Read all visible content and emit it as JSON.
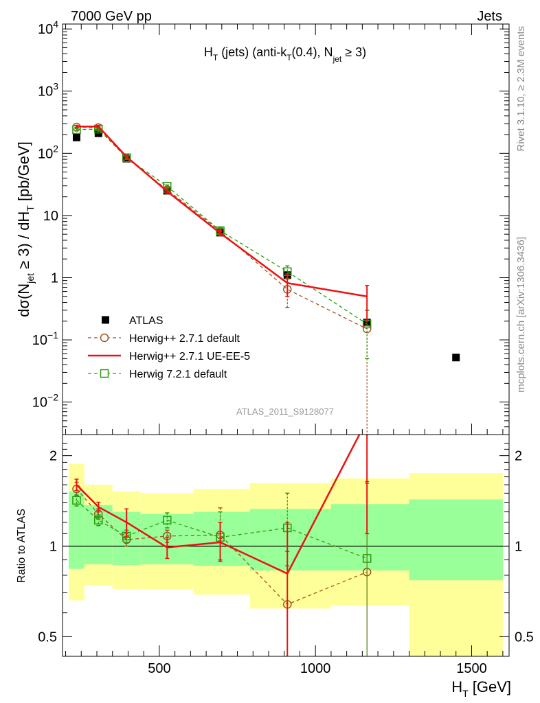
{
  "header": {
    "left": "7000 GeV pp",
    "right": "Jets"
  },
  "side": {
    "rivet": "Rivet 3.1.10, ≥ 2.3M events",
    "mcplots": "mcplots.cern.ch [arXiv:1306.3436]"
  },
  "watermark": "ATLAS_2011_S9128077",
  "colors": {
    "data": "#000000",
    "herwig_pp_default": "#a0521e",
    "herwig_pp_ueee5": "#ee1111",
    "herwig72": "#2a9a0a",
    "band_inner": "#99ff99",
    "band_outer": "#ffff99"
  },
  "chart_data": [
    {
      "type": "scatter",
      "panel": "main",
      "title": "H_T (jets) (anti-k_T(0.4), N_jet ≥ 3)",
      "xlabel": "",
      "ylabel": "dσ(N_jet ≥ 3) / dH_T [pb/GeV]",
      "yscale": "log",
      "xlim": [
        190,
        1620
      ],
      "ylim": [
        0.003,
        12000
      ],
      "y_ticks": [
        "10^-2",
        "10^-1",
        "1",
        "10",
        "10^2",
        "10^3",
        "10^4"
      ],
      "legend_position": "bottom-left",
      "series": [
        {
          "name": "ATLAS",
          "style": "marker-square",
          "points": [
            {
              "x": 235,
              "y": 180
            },
            {
              "x": 305,
              "y": 210
            },
            {
              "x": 395,
              "y": 82
            },
            {
              "x": 525,
              "y": 25
            },
            {
              "x": 695,
              "y": 5.3
            },
            {
              "x": 910,
              "y": 1.1
            },
            {
              "x": 1165,
              "y": 0.19
            },
            {
              "x": 1450,
              "y": 0.052
            }
          ]
        },
        {
          "name": "Herwig++ 2.7.1 default",
          "style": "dashed-circle",
          "points": [
            {
              "x": 235,
              "y": 265,
              "lo": 250,
              "hi": 280
            },
            {
              "x": 305,
              "y": 260,
              "lo": 248,
              "hi": 272
            },
            {
              "x": 395,
              "y": 84,
              "lo": 80,
              "hi": 88
            },
            {
              "x": 525,
              "y": 26,
              "lo": 24.5,
              "hi": 27.5
            },
            {
              "x": 695,
              "y": 5.6,
              "lo": 5.0,
              "hi": 6.3
            },
            {
              "x": 910,
              "y": 0.65,
              "lo": 0.33,
              "hi": 0.98
            },
            {
              "x": 1165,
              "y": 0.15,
              "lo": 0.001,
              "hi": 0.3
            }
          ]
        },
        {
          "name": "Herwig++ 2.7.1 UE-EE-5",
          "style": "solid-line",
          "points": [
            {
              "x": 235,
              "y": 270,
              "lo": 260,
              "hi": 282
            },
            {
              "x": 305,
              "y": 270,
              "lo": 260,
              "hi": 282
            },
            {
              "x": 395,
              "y": 88,
              "lo": 84,
              "hi": 92
            },
            {
              "x": 525,
              "y": 24.5,
              "lo": 23,
              "hi": 26
            },
            {
              "x": 695,
              "y": 5.2,
              "lo": 4.7,
              "hi": 5.8
            },
            {
              "x": 910,
              "y": 0.82,
              "lo": 0.5,
              "hi": 1.15
            },
            {
              "x": 1165,
              "y": 0.5,
              "lo": 0.2,
              "hi": 0.75
            }
          ]
        },
        {
          "name": "Herwig 7.2.1 default",
          "style": "dashed-square",
          "points": [
            {
              "x": 235,
              "y": 240,
              "lo": 228,
              "hi": 252
            },
            {
              "x": 305,
              "y": 245,
              "lo": 233,
              "hi": 257
            },
            {
              "x": 395,
              "y": 85,
              "lo": 81,
              "hi": 89
            },
            {
              "x": 525,
              "y": 29.5,
              "lo": 28,
              "hi": 31
            },
            {
              "x": 695,
              "y": 5.7,
              "lo": 5.1,
              "hi": 6.3
            },
            {
              "x": 910,
              "y": 1.25,
              "lo": 0.95,
              "hi": 1.55
            },
            {
              "x": 1165,
              "y": 0.18,
              "lo": 0.05,
              "hi": 0.3
            }
          ]
        }
      ]
    },
    {
      "type": "line",
      "panel": "ratio",
      "xlabel": "H_T [GeV]",
      "ylabel": "Ratio to ATLAS",
      "yscale": "log",
      "xlim": [
        190,
        1620
      ],
      "ylim": [
        0.43,
        2.35
      ],
      "x_ticks": [
        500,
        1000,
        1500
      ],
      "y_ticks": [
        0.5,
        1,
        2
      ],
      "uncertainty_bands": [
        {
          "x0": 210,
          "x1": 260,
          "outer": [
            0.66,
            1.88
          ],
          "inner": [
            0.84,
            1.52
          ]
        },
        {
          "x0": 260,
          "x1": 350,
          "outer": [
            0.74,
            1.6
          ],
          "inner": [
            0.87,
            1.37
          ]
        },
        {
          "x0": 350,
          "x1": 440,
          "outer": [
            0.72,
            1.52
          ],
          "inner": [
            0.865,
            1.3
          ]
        },
        {
          "x0": 440,
          "x1": 610,
          "outer": [
            0.72,
            1.5
          ],
          "inner": [
            0.87,
            1.28
          ]
        },
        {
          "x0": 610,
          "x1": 790,
          "outer": [
            0.69,
            1.55
          ],
          "inner": [
            0.86,
            1.3
          ]
        },
        {
          "x0": 790,
          "x1": 1050,
          "outer": [
            0.62,
            1.62
          ],
          "inner": [
            0.83,
            1.33
          ]
        },
        {
          "x0": 1050,
          "x1": 1300,
          "outer": [
            0.635,
            1.68
          ],
          "inner": [
            0.83,
            1.38
          ]
        },
        {
          "x0": 1300,
          "x1": 1600,
          "outer": [
            0.43,
            1.75
          ],
          "inner": [
            0.77,
            1.43
          ]
        }
      ],
      "series": [
        {
          "name": "Herwig++ 2.7.1 default",
          "points": [
            {
              "x": 235,
              "y": 1.55,
              "lo": 1.47,
              "hi": 1.63
            },
            {
              "x": 305,
              "y": 1.28,
              "lo": 1.23,
              "hi": 1.33
            },
            {
              "x": 395,
              "y": 1.05,
              "lo": 1.0,
              "hi": 1.1
            },
            {
              "x": 525,
              "y": 1.08,
              "lo": 1.03,
              "hi": 1.13
            },
            {
              "x": 695,
              "y": 1.09,
              "lo": 0.9,
              "hi": 1.34
            },
            {
              "x": 910,
              "y": 0.64,
              "lo": 0.3,
              "hi": 0.96
            },
            {
              "x": 1165,
              "y": 0.82,
              "lo": 0.3,
              "hi": 1.62
            }
          ]
        },
        {
          "name": "Herwig++ 2.7.1 UE-EE-5",
          "points": [
            {
              "x": 235,
              "y": 1.6,
              "lo": 1.53,
              "hi": 1.67
            },
            {
              "x": 305,
              "y": 1.35,
              "lo": 1.3,
              "hi": 1.4
            },
            {
              "x": 395,
              "y": 1.2,
              "lo": 1.07,
              "hi": 1.33
            },
            {
              "x": 525,
              "y": 0.99,
              "lo": 0.91,
              "hi": 1.07
            },
            {
              "x": 695,
              "y": 1.03,
              "lo": 0.89,
              "hi": 1.2
            },
            {
              "x": 910,
              "y": 0.81,
              "lo": 0.4,
              "hi": 1.2
            },
            {
              "x": 1165,
              "y": 2.63,
              "lo": 1.1,
              "hi": 4.0
            }
          ]
        },
        {
          "name": "Herwig 7.2.1 default",
          "points": [
            {
              "x": 235,
              "y": 1.42,
              "lo": 1.36,
              "hi": 1.48
            },
            {
              "x": 305,
              "y": 1.22,
              "lo": 1.17,
              "hi": 1.27
            },
            {
              "x": 395,
              "y": 1.08,
              "lo": 1.03,
              "hi": 1.13
            },
            {
              "x": 525,
              "y": 1.22,
              "lo": 1.15,
              "hi": 1.29
            },
            {
              "x": 695,
              "y": 1.07,
              "lo": 0.9,
              "hi": 1.3
            },
            {
              "x": 910,
              "y": 1.15,
              "lo": 0.86,
              "hi": 1.5
            },
            {
              "x": 1165,
              "y": 0.91,
              "lo": 0.3,
              "hi": 1.64
            }
          ]
        }
      ]
    }
  ]
}
